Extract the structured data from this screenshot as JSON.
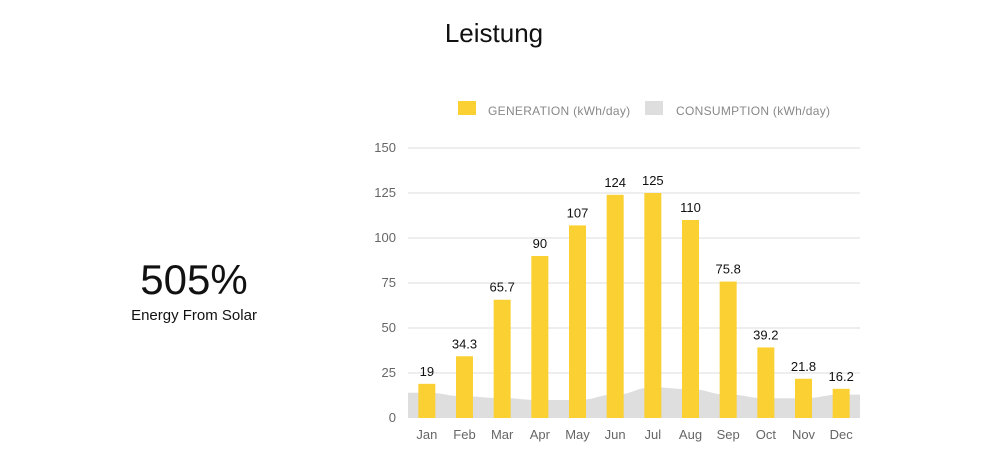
{
  "title": "Leistung",
  "stat": {
    "value": "505%",
    "label": "Energy From Solar"
  },
  "colors": {
    "generation": "#fbd033",
    "consumption": "#dedede",
    "grid": "#dddddd"
  },
  "chart_data": {
    "type": "bar",
    "categories": [
      "Jan",
      "Feb",
      "Mar",
      "Apr",
      "May",
      "Jun",
      "Jul",
      "Aug",
      "Sep",
      "Oct",
      "Nov",
      "Dec"
    ],
    "series": [
      {
        "name": "GENERATION (kWh/day)",
        "kind": "bar",
        "values": [
          19,
          34.3,
          65.7,
          90,
          107,
          124,
          125,
          110,
          75.8,
          39.2,
          21.8,
          16.2
        ],
        "labels": [
          "19",
          "34.3",
          "65.7",
          "90",
          "107",
          "124",
          "125",
          "110",
          "75.8",
          "39.2",
          "21.8",
          "16.2"
        ]
      },
      {
        "name": "CONSUMPTION (kWh/day)",
        "kind": "area",
        "values": [
          14,
          12,
          11,
          10,
          10,
          13,
          17,
          16,
          13,
          11,
          11,
          13
        ]
      }
    ],
    "yticks": [
      0,
      25,
      50,
      75,
      100,
      125,
      150
    ],
    "ylim": [
      0,
      150
    ],
    "xlabel": "",
    "ylabel": "",
    "legend": "top",
    "grid": true
  }
}
